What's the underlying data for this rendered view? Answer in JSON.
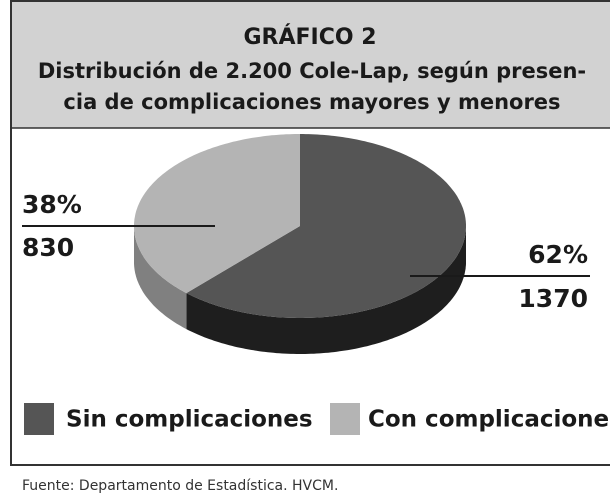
{
  "chart_data": {
    "type": "pie",
    "title": "GRÁFICO 2",
    "subtitle": [
      "Distribución de 2.200 Cole-Lap, según presen-",
      "cia de complicaciones mayores y menores"
    ],
    "categories": [
      "Sin complicaciones",
      "Con complicaciones"
    ],
    "values": [
      62,
      38
    ],
    "value_labels": [
      "62%",
      "38%"
    ],
    "counts": [
      1370,
      830
    ],
    "colors": [
      "#555555",
      "#b4b4b4"
    ],
    "source": "Fuente: Departamento de Estadística. HVCM."
  }
}
